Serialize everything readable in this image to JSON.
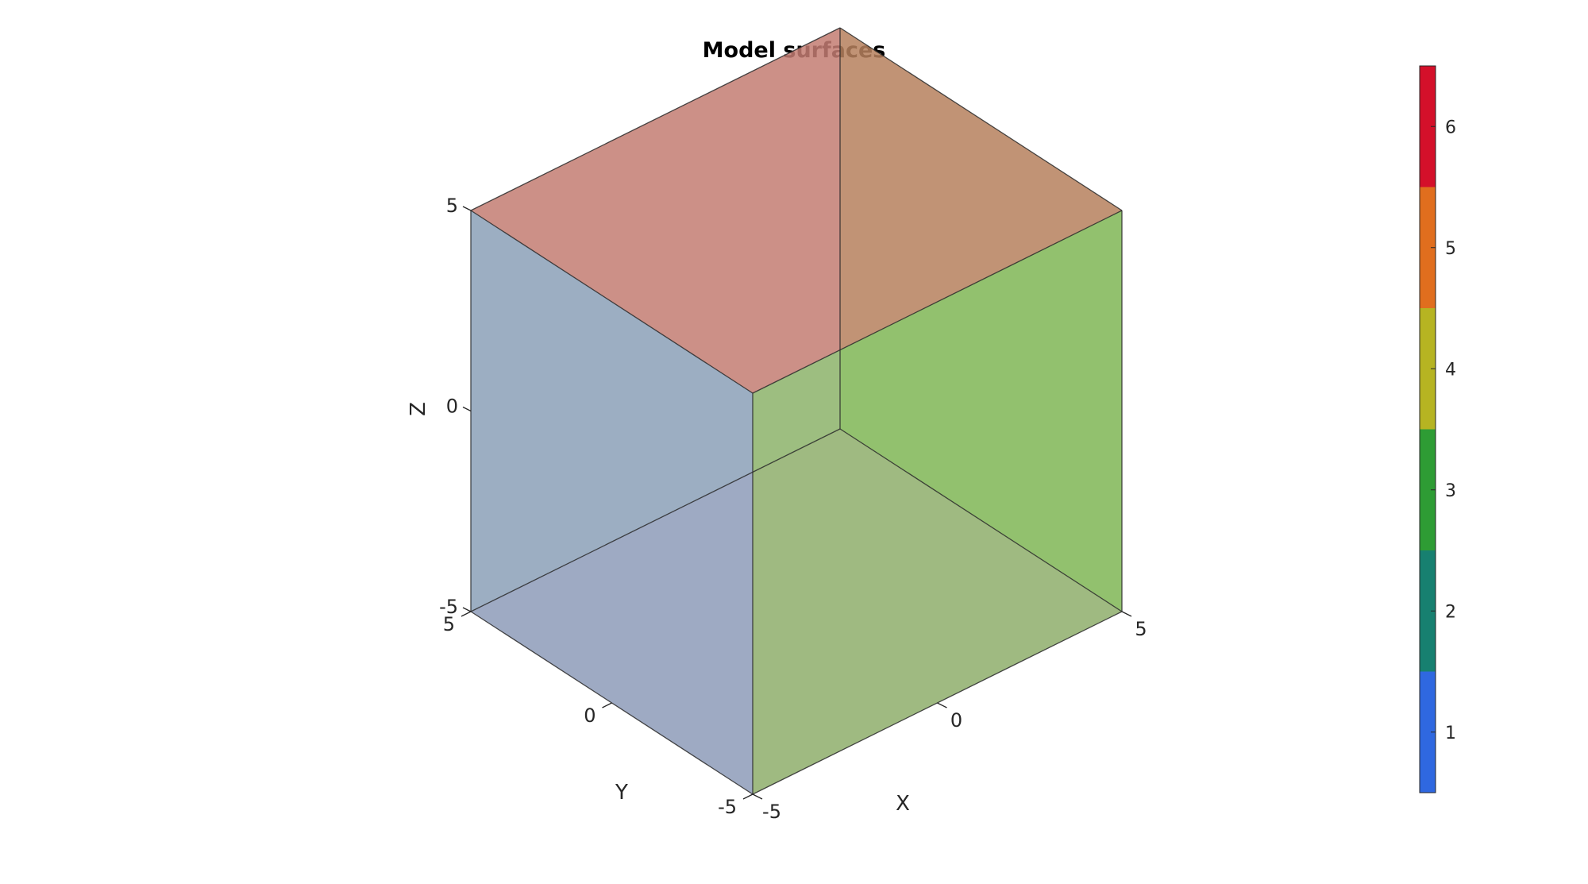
{
  "chart_data": {
    "type": "surface-3d",
    "title": "Model surfaces",
    "xlabel": "X",
    "ylabel": "Y",
    "zlabel": "Z",
    "xlim": [
      -5,
      5
    ],
    "ylim": [
      -5,
      5
    ],
    "zlim": [
      -5,
      5
    ],
    "xticks": [
      "-5",
      "0",
      "5"
    ],
    "yticks": [
      "-5",
      "0",
      "5"
    ],
    "zticks": [
      "-5",
      "0",
      "5"
    ],
    "faces": [
      {
        "id": 1,
        "name": "bottom",
        "color": "#9490bc"
      },
      {
        "id": 2,
        "name": "back-left",
        "color": "#8da0b8"
      },
      {
        "id": 3,
        "name": "back-right",
        "color": "#5eaf6b"
      },
      {
        "id": 4,
        "name": "front-right",
        "color": "#8cb94d"
      },
      {
        "id": 5,
        "name": "front-left",
        "color": "#8aa0b8"
      },
      {
        "id": 6,
        "name": "top",
        "color": "#d87059"
      }
    ],
    "colorbar": {
      "ticks": [
        "1",
        "2",
        "3",
        "4",
        "5",
        "6"
      ],
      "colors": [
        "#2f68e0",
        "#178070",
        "#2e9c34",
        "#b6b422",
        "#e06e1e",
        "#d4102a"
      ],
      "range": [
        0.5,
        6.5
      ]
    }
  }
}
